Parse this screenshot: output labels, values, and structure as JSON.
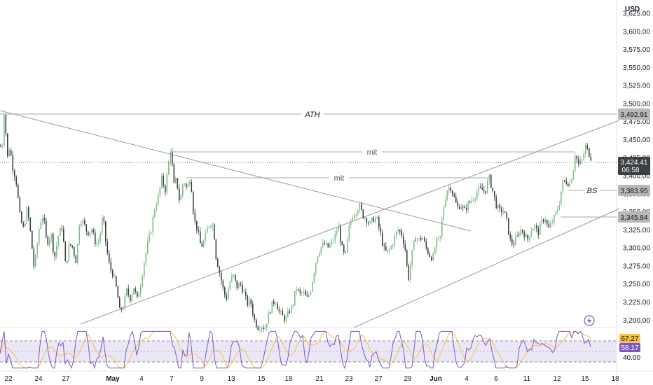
{
  "chart_data": {
    "type": "candlestick",
    "currency_label": "USD",
    "main_pane": {
      "y_range": [
        3192,
        3643
      ],
      "y_ticks": [
        "3,625.00",
        "3,600.00",
        "3,575.00",
        "3,550.00",
        "3,525.00",
        "3,500.00",
        "3,475.00",
        "3,450.00",
        "3,425.00",
        "3,400.00",
        "3,375.00",
        "3,350.00",
        "3,325.00",
        "3,300.00",
        "3,275.00",
        "3,250.00",
        "3,225.00",
        "3,200.00"
      ],
      "y_tick_values": [
        3625,
        3600,
        3575,
        3550,
        3525,
        3500,
        3475,
        3450,
        3425,
        3400,
        3375,
        3350,
        3325,
        3300,
        3275,
        3250,
        3225,
        3200
      ],
      "price_path": [
        [
          0,
          3440
        ],
        [
          1,
          3410
        ],
        [
          4,
          3478
        ],
        [
          6,
          3498
        ],
        [
          9,
          3420
        ],
        [
          13,
          3440
        ],
        [
          18,
          3408
        ],
        [
          22,
          3395
        ],
        [
          28,
          3340
        ],
        [
          33,
          3325
        ],
        [
          38,
          3355
        ],
        [
          43,
          3318
        ],
        [
          48,
          3270
        ],
        [
          52,
          3300
        ],
        [
          56,
          3335
        ],
        [
          61,
          3345
        ],
        [
          66,
          3305
        ],
        [
          72,
          3320
        ],
        [
          77,
          3285
        ],
        [
          82,
          3315
        ],
        [
          88,
          3330
        ],
        [
          93,
          3272
        ],
        [
          98,
          3305
        ],
        [
          103,
          3300
        ],
        [
          108,
          3280
        ],
        [
          113,
          3340
        ],
        [
          118,
          3335
        ],
        [
          124,
          3320
        ],
        [
          130,
          3325
        ],
        [
          136,
          3305
        ],
        [
          141,
          3310
        ],
        [
          146,
          3345
        ],
        [
          151,
          3300
        ],
        [
          156,
          3272
        ],
        [
          161,
          3262
        ],
        [
          166,
          3240
        ],
        [
          170,
          3212
        ],
        [
          175,
          3218
        ],
        [
          180,
          3240
        ],
        [
          185,
          3230
        ],
        [
          190,
          3245
        ],
        [
          195,
          3228
        ],
        [
          200,
          3250
        ],
        [
          205,
          3280
        ],
        [
          210,
          3305
        ],
        [
          215,
          3325
        ],
        [
          220,
          3355
        ],
        [
          225,
          3370
        ],
        [
          230,
          3395
        ],
        [
          235,
          3380
        ],
        [
          239,
          3410
        ],
        [
          243,
          3440
        ],
        [
          247,
          3385
        ],
        [
          251,
          3395
        ],
        [
          256,
          3360
        ],
        [
          261,
          3395
        ],
        [
          266,
          3380
        ],
        [
          271,
          3400
        ],
        [
          276,
          3340
        ],
        [
          281,
          3325
        ],
        [
          286,
          3300
        ],
        [
          291,
          3310
        ],
        [
          296,
          3330
        ],
        [
          301,
          3335
        ],
        [
          304,
          3328
        ],
        [
          307,
          3290
        ],
        [
          312,
          3268
        ],
        [
          317,
          3245
        ],
        [
          322,
          3228
        ],
        [
          327,
          3252
        ],
        [
          332,
          3262
        ],
        [
          337,
          3245
        ],
        [
          342,
          3250
        ],
        [
          347,
          3238
        ],
        [
          352,
          3222
        ],
        [
          357,
          3225
        ],
        [
          362,
          3200
        ],
        [
          367,
          3190
        ],
        [
          372,
          3192
        ],
        [
          377,
          3188
        ],
        [
          382,
          3205
        ],
        [
          387,
          3220
        ],
        [
          392,
          3228
        ],
        [
          397,
          3212
        ],
        [
          402,
          3205
        ],
        [
          407,
          3200
        ],
        [
          412,
          3212
        ],
        [
          417,
          3220
        ],
        [
          422,
          3245
        ],
        [
          427,
          3235
        ],
        [
          432,
          3238
        ],
        [
          437,
          3228
        ],
        [
          442,
          3240
        ],
        [
          447,
          3265
        ],
        [
          452,
          3290
        ],
        [
          457,
          3300
        ],
        [
          462,
          3305
        ],
        [
          467,
          3300
        ],
        [
          472,
          3305
        ],
        [
          477,
          3315
        ],
        [
          482,
          3330
        ],
        [
          487,
          3300
        ],
        [
          492,
          3285
        ],
        [
          497,
          3325
        ],
        [
          502,
          3345
        ],
        [
          507,
          3350
        ],
        [
          512,
          3358
        ],
        [
          517,
          3345
        ],
        [
          522,
          3340
        ],
        [
          527,
          3332
        ],
        [
          532,
          3340
        ],
        [
          537,
          3340
        ],
        [
          542,
          3320
        ],
        [
          547,
          3298
        ],
        [
          552,
          3292
        ],
        [
          557,
          3300
        ],
        [
          562,
          3312
        ],
        [
          567,
          3325
        ],
        [
          572,
          3320
        ],
        [
          577,
          3302
        ],
        [
          582,
          3255
        ],
        [
          587,
          3290
        ],
        [
          592,
          3315
        ],
        [
          597,
          3310
        ],
        [
          602,
          3315
        ],
        [
          607,
          3300
        ],
        [
          612,
          3290
        ],
        [
          617,
          3285
        ],
        [
          622,
          3308
        ],
        [
          627,
          3310
        ],
        [
          632,
          3355
        ],
        [
          637,
          3380
        ],
        [
          642,
          3385
        ],
        [
          647,
          3370
        ],
        [
          652,
          3355
        ],
        [
          657,
          3360
        ],
        [
          662,
          3350
        ],
        [
          667,
          3360
        ],
        [
          672,
          3365
        ],
        [
          677,
          3372
        ],
        [
          682,
          3380
        ],
        [
          687,
          3380
        ],
        [
          692,
          3378
        ],
        [
          697,
          3398
        ],
        [
          702,
          3380
        ],
        [
          707,
          3360
        ],
        [
          712,
          3350
        ],
        [
          717,
          3352
        ],
        [
          722,
          3340
        ],
        [
          727,
          3310
        ],
        [
          732,
          3305
        ],
        [
          737,
          3315
        ],
        [
          742,
          3325
        ],
        [
          747,
          3320
        ],
        [
          752,
          3310
        ],
        [
          757,
          3325
        ],
        [
          762,
          3330
        ],
        [
          767,
          3320
        ],
        [
          772,
          3335
        ],
        [
          777,
          3342
        ],
        [
          782,
          3325
        ],
        [
          787,
          3335
        ],
        [
          792,
          3345
        ],
        [
          797,
          3360
        ],
        [
          802,
          3390
        ],
        [
          807,
          3392
        ],
        [
          812,
          3388
        ],
        [
          817,
          3405
        ],
        [
          820,
          3430
        ],
        [
          825,
          3415
        ],
        [
          830,
          3420
        ],
        [
          835,
          3440
        ],
        [
          840,
          3430
        ],
        [
          843,
          3424
        ]
      ],
      "last_price": "3,424.41",
      "countdown": "06:58",
      "horizontal_levels": [
        {
          "name": "ATH",
          "value": 3492.91,
          "label": "3,492.91"
        },
        {
          "name": "BS",
          "value": 3383.95,
          "label": "3,383.95"
        },
        {
          "name": "",
          "value": 3345.84,
          "label": "3,345.84"
        }
      ],
      "annotations": [
        "ATH",
        "mit",
        "mit",
        "BS"
      ]
    },
    "indicator_pane": {
      "y_range": [
        26,
        77
      ],
      "tick_label": "40.00",
      "value_primary": "67.27",
      "value_secondary": "58.17",
      "band_upper": 70,
      "band_lower": 30
    },
    "x_ticks": [
      "22",
      "24",
      "27",
      "May",
      "4",
      "7",
      "9",
      "13",
      "15",
      "18",
      "21",
      "23",
      "27",
      "29",
      "Jun",
      "4",
      "6",
      "11",
      "12",
      "15",
      "18"
    ],
    "colors": {
      "up": "#7fbf8a",
      "down": "#3c4043",
      "rsi": "#7e57c2",
      "rsi_ma": "#f5c242",
      "band_fill": "#ece7f7",
      "level_label_bg": "#b7b7b7",
      "last_price_bg": "#3c4043"
    },
    "icons": [
      "lightning-icon"
    ]
  }
}
